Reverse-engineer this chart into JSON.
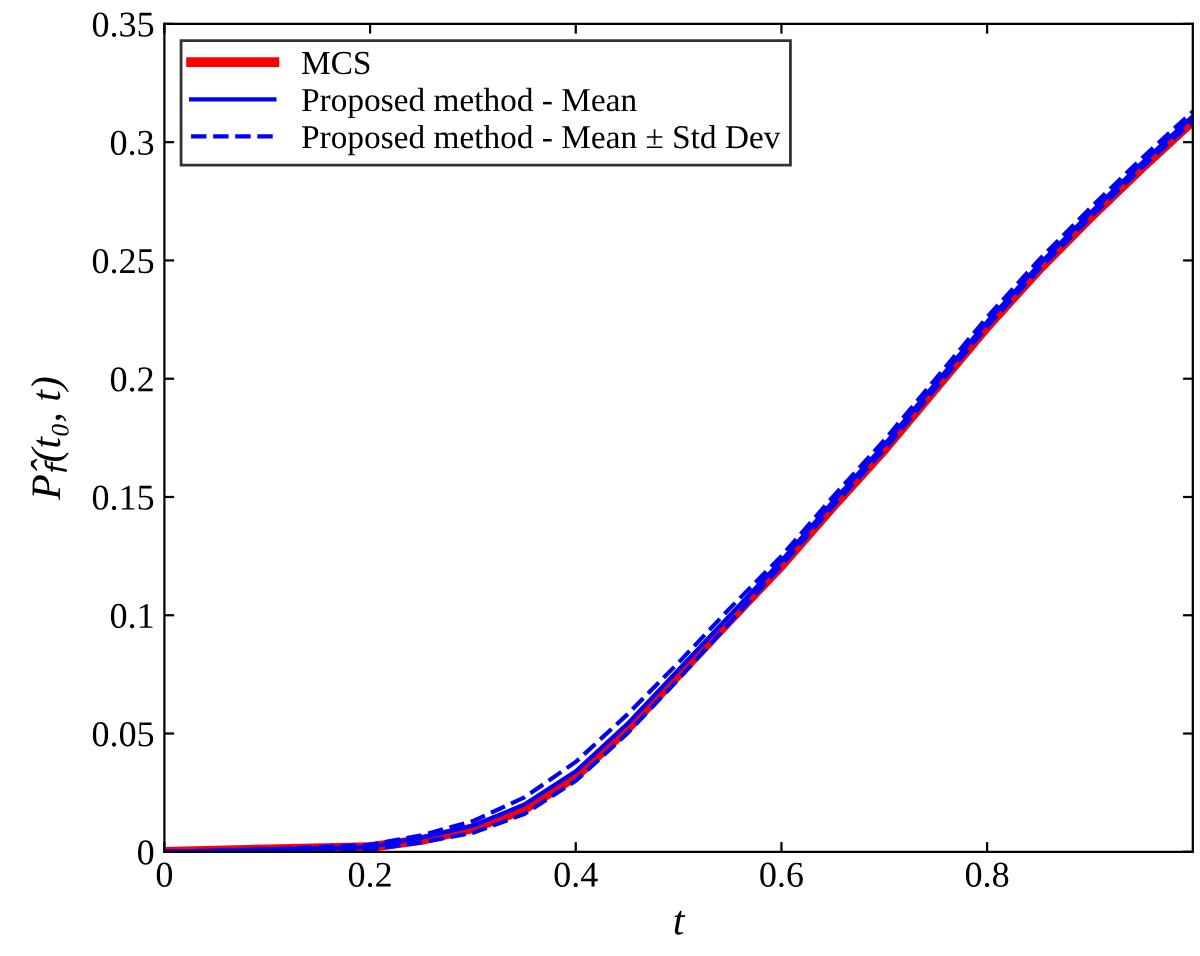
{
  "chart_data": {
    "type": "line",
    "xlabel": "t",
    "ylabel": "P̂$_{f}$(t₀, t)",
    "x": [
      0,
      0.1,
      0.2,
      0.25,
      0.3,
      0.35,
      0.4,
      0.45,
      0.5,
      0.55,
      0.6,
      0.65,
      0.7,
      0.75,
      0.8,
      0.85,
      0.9,
      0.95,
      1.0
    ],
    "series": [
      {
        "name": "MCS",
        "color": "#ff0000",
        "line_style": "solid",
        "values": [
          0,
          0.001,
          0.002,
          0.005,
          0.01,
          0.018,
          0.032,
          0.052,
          0.075,
          0.098,
          0.121,
          0.146,
          0.17,
          0.196,
          0.222,
          0.246,
          0.268,
          0.289,
          0.309
        ]
      },
      {
        "name": "Proposed method - Mean",
        "color": "#0000ff",
        "line_style": "solid",
        "values": [
          0,
          0.001,
          0.002,
          0.006,
          0.011,
          0.02,
          0.034,
          0.054,
          0.077,
          0.1,
          0.123,
          0.148,
          0.172,
          0.198,
          0.224,
          0.248,
          0.27,
          0.291,
          0.311
        ]
      },
      {
        "name": "Proposed method - Mean ± Std Dev",
        "color": "#0000ff",
        "line_style": "dashed",
        "values": [
          0,
          0.001,
          0.003,
          0.007,
          0.013,
          0.023,
          0.038,
          0.058,
          0.08,
          0.103,
          0.125,
          0.15,
          0.174,
          0.2,
          0.226,
          0.25,
          0.272,
          0.293,
          0.313
        ]
      },
      {
        "color": "#0000ff",
        "line_style": "dashed",
        "values": [
          0,
          0,
          0.001,
          0.004,
          0.008,
          0.016,
          0.03,
          0.05,
          0.073,
          0.097,
          0.121,
          0.146,
          0.17,
          0.196,
          0.222,
          0.246,
          0.268,
          0.289,
          0.309
        ]
      }
    ],
    "xlim": [
      0,
      1
    ],
    "xticks": [
      0,
      0.2,
      0.4,
      0.6,
      0.8
    ],
    "ylim": [
      0,
      0.35
    ],
    "yticks": [
      0,
      0.05,
      0.1,
      0.15,
      0.2,
      0.25,
      0.3,
      0.35
    ],
    "grid": false,
    "legend": "top left"
  }
}
